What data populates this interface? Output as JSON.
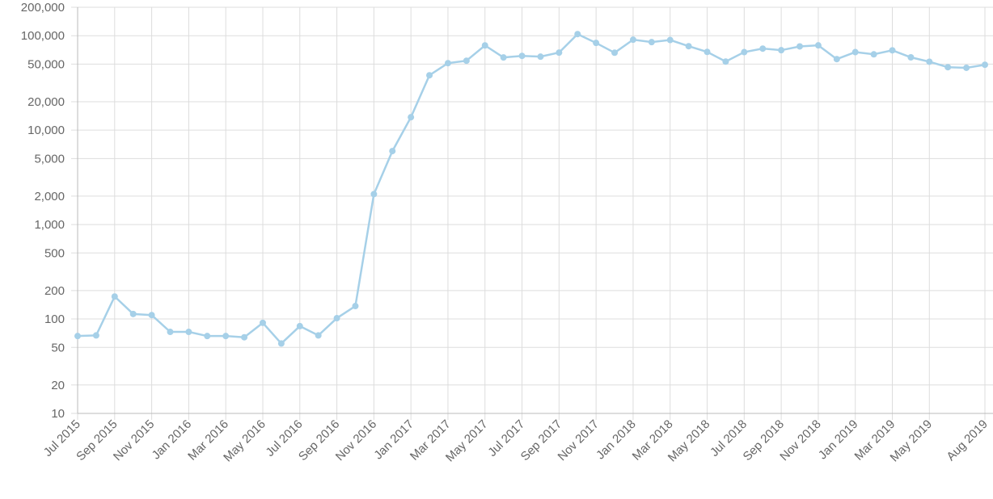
{
  "chart_data": {
    "type": "line",
    "categories": [
      "Jul 2015",
      null,
      "Sep 2015",
      null,
      "Nov 2015",
      null,
      "Jan 2016",
      null,
      "Mar 2016",
      null,
      "May 2016",
      null,
      "Jul 2016",
      null,
      "Sep 2016",
      null,
      "Nov 2016",
      null,
      "Jan 2017",
      null,
      "Mar 2017",
      null,
      "May 2017",
      null,
      "Jul 2017",
      null,
      "Sep 2017",
      null,
      "Nov 2017",
      null,
      "Jan 2018",
      null,
      "Mar 2018",
      null,
      "May 2018",
      null,
      "Jul 2018",
      null,
      "Sep 2018",
      null,
      "Nov 2018",
      null,
      "Jan 2019",
      null,
      "Mar 2019",
      null,
      "May 2019",
      null,
      null,
      "Aug 2019"
    ],
    "series": [
      {
        "color": "#a6d0e8",
        "values": [
          66,
          67,
          173,
          113,
          110,
          73,
          73,
          66,
          66,
          64,
          91,
          55,
          84,
          67,
          102,
          137,
          2100,
          6000,
          13700,
          38100,
          51200,
          54300,
          78900,
          58800,
          61100,
          60000,
          66200,
          104000,
          83800,
          66000,
          90700,
          85500,
          90000,
          77400,
          67400,
          53200,
          67000,
          73000,
          70200,
          77000,
          79000,
          56500,
          67000,
          63500,
          70000,
          59000,
          53000,
          46400,
          45700,
          49200
        ]
      }
    ],
    "log_scale": true,
    "ylim": [
      10,
      200000
    ],
    "yticks": [
      10,
      20,
      50,
      100,
      200,
      500,
      {
        "value": 1000,
        "label": "1,000"
      },
      {
        "value": 2000,
        "label": "2,000"
      },
      {
        "value": 5000,
        "label": "5,000"
      },
      {
        "value": 10000,
        "label": "10,000"
      },
      {
        "value": 20000,
        "label": "20,000"
      },
      {
        "value": 50000,
        "label": "50,000"
      },
      {
        "value": 100000,
        "label": "100,000"
      },
      {
        "value": 200000,
        "label": "200,000"
      }
    ],
    "grid": true
  }
}
